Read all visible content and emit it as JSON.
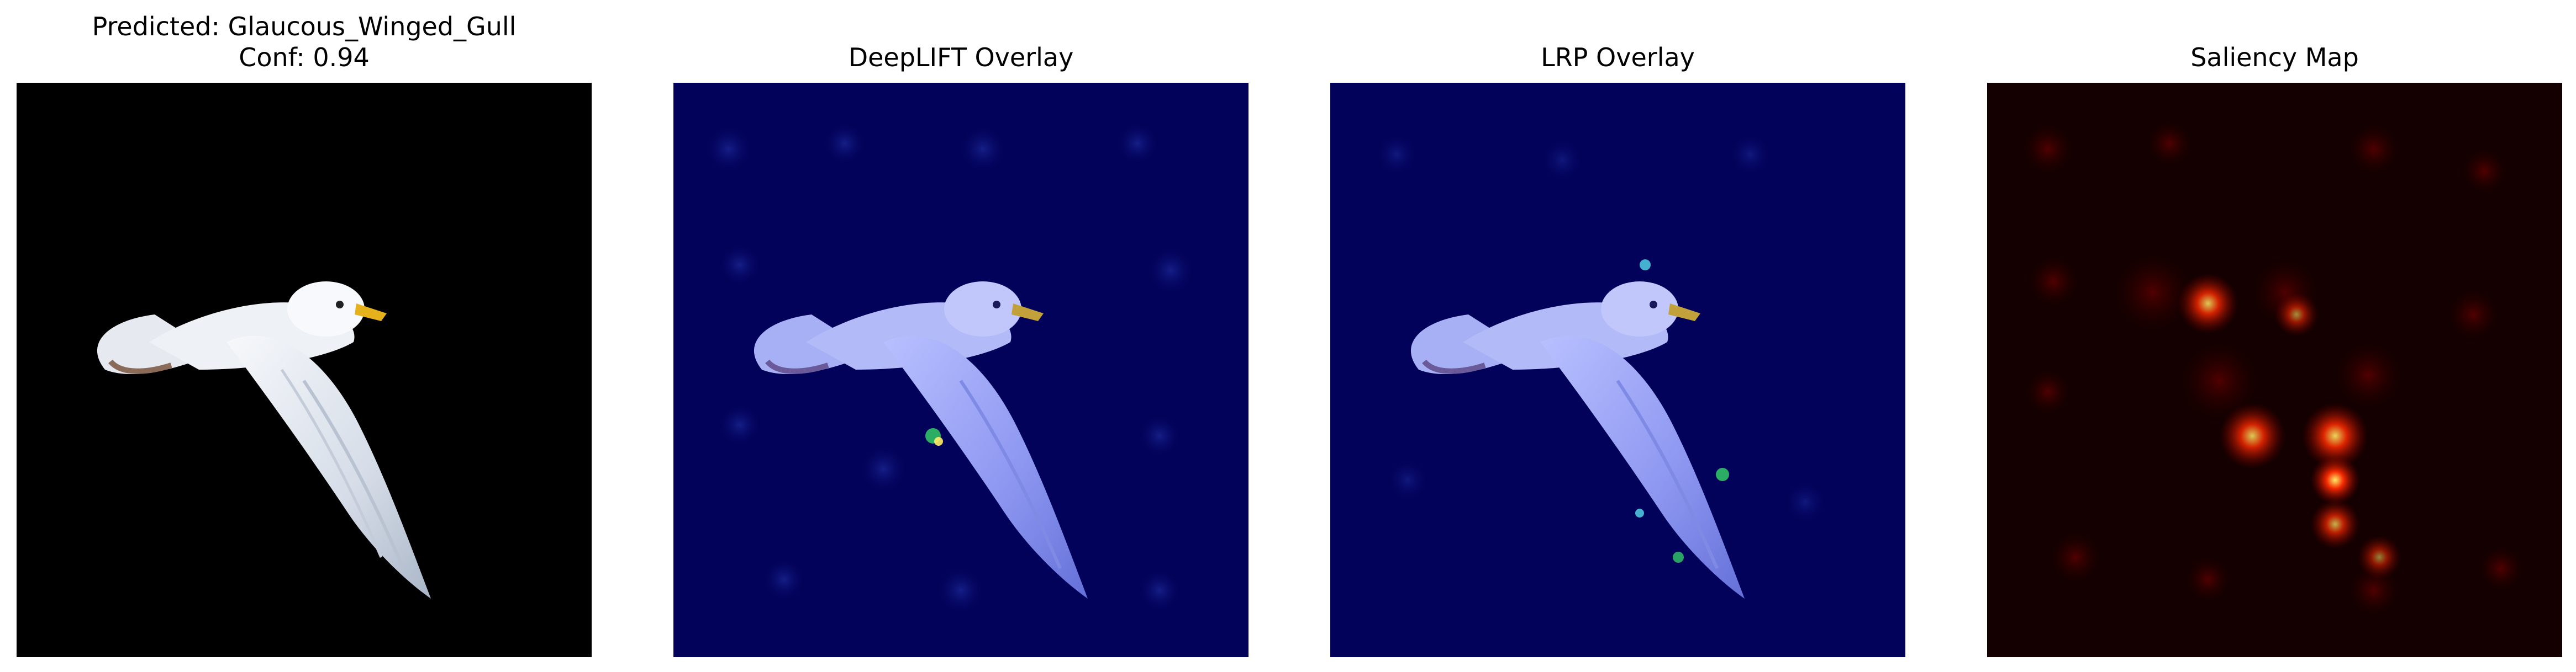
{
  "panels": [
    {
      "title_line1": "Predicted: Glaucous_Winged_Gull",
      "title_line2": "Conf: 0.94",
      "kind": "original"
    },
    {
      "title": "DeepLIFT Overlay",
      "kind": "overlay"
    },
    {
      "title": "LRP Overlay",
      "kind": "overlay"
    },
    {
      "title": "Saliency Map",
      "kind": "saliency"
    }
  ],
  "colors": {
    "original_background": "#000000",
    "overlay_background": "#02025a",
    "saliency_background": "#140000",
    "saliency_hotspot": "#ff2a00"
  },
  "icons": {
    "subject": "gull-icon"
  }
}
